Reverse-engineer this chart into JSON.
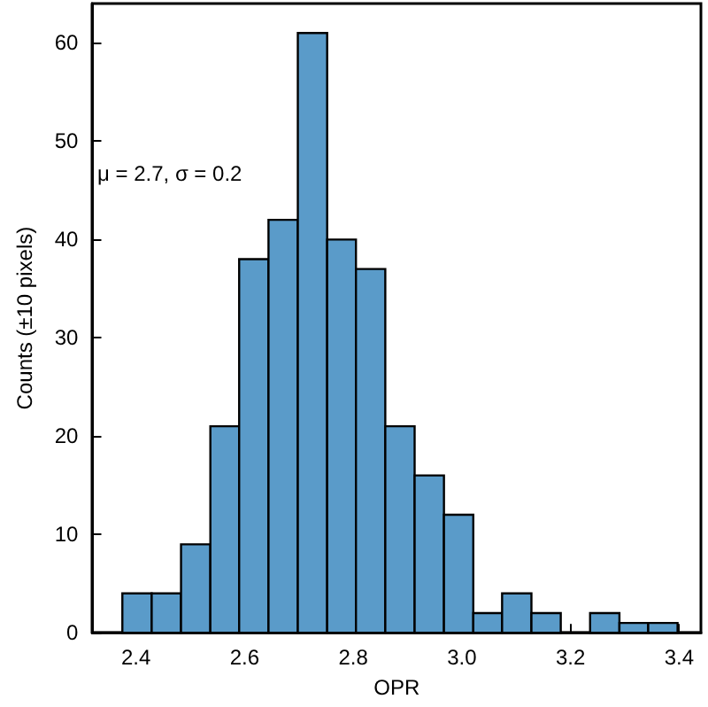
{
  "chart_data": {
    "type": "histogram",
    "xlabel": "OPR",
    "ylabel": "Counts (±10 pixels)",
    "bins": [
      2.375,
      2.429,
      2.483,
      2.537,
      2.59,
      2.644,
      2.698,
      2.752,
      2.805,
      2.859,
      2.913,
      2.967,
      3.021,
      3.074,
      3.128,
      3.182,
      3.236,
      3.29,
      3.343,
      3.397
    ],
    "values": [
      4,
      4,
      9,
      21,
      38,
      42,
      61,
      40,
      37,
      21,
      16,
      12,
      2,
      4,
      2,
      0,
      2,
      1,
      1
    ],
    "color": "#5a9bc9",
    "xlim": [
      2.32,
      3.44
    ],
    "xticks": [
      {
        "value": 2.4,
        "label": "2.4"
      },
      {
        "value": 2.6,
        "label": "2.6"
      },
      {
        "value": 2.8,
        "label": "2.8"
      },
      {
        "value": 3,
        "label": "3.0"
      },
      {
        "value": 3.2,
        "label": "3.2"
      },
      {
        "value": 3.4,
        "label": "3.4"
      }
    ],
    "ylim": [
      0,
      64
    ],
    "yticks": [
      0,
      10,
      20,
      30,
      40,
      50,
      60
    ],
    "annotations": [
      "μ = 2.7, σ = 0.2"
    ],
    "grid": false
  }
}
